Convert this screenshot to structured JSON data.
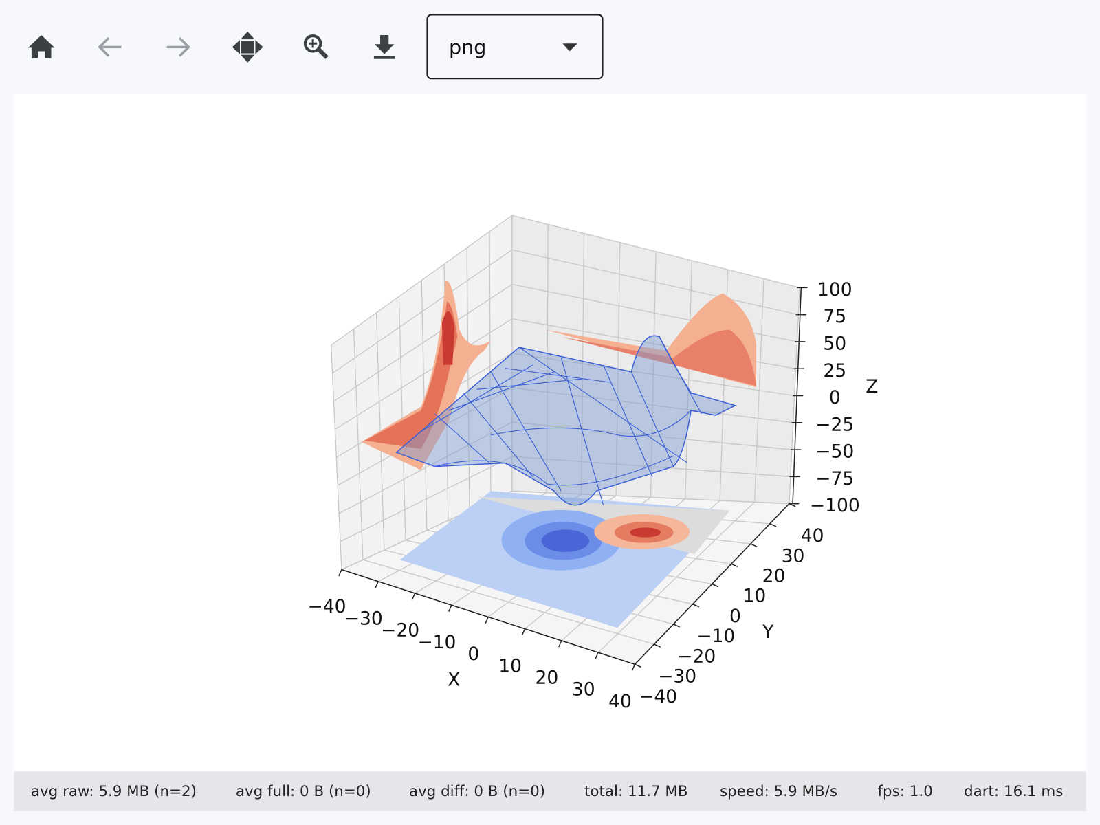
{
  "toolbar": {
    "format": "png"
  },
  "chart_data": {
    "type": "surface3d",
    "xlabel": "X",
    "ylabel": "Y",
    "zlabel": "Z",
    "xlim": [
      -40,
      40
    ],
    "xticks": [
      {
        "value": -40,
        "label": "−40"
      },
      {
        "value": -30,
        "label": "−30"
      },
      {
        "value": -20,
        "label": "−20"
      },
      {
        "value": -10,
        "label": "−10"
      },
      0,
      10,
      20,
      30,
      40
    ],
    "ylim": [
      -40,
      40
    ],
    "yticks": [
      {
        "value": -40,
        "label": "−40"
      },
      {
        "value": -30,
        "label": "−30"
      },
      {
        "value": -20,
        "label": "−20"
      },
      {
        "value": -10,
        "label": "−10"
      },
      0,
      10,
      20,
      30,
      40
    ],
    "zlim": [
      -100,
      100
    ],
    "zticks": [
      {
        "value": -100,
        "label": "−100"
      },
      {
        "value": -75,
        "label": "−75"
      },
      {
        "value": -50,
        "label": "−50"
      },
      {
        "value": -25,
        "label": "−25"
      },
      0,
      25,
      50,
      75,
      100
    ]
  },
  "status_bar": {
    "items": [
      "avg raw: 5.9 MB (n=2)",
      "avg full: 0 B (n=0)",
      "avg diff: 0 B (n=0)",
      "total: 11.7 MB",
      "speed: 5.9 MB/s",
      "fps: 1.0",
      "dart: 16.1 ms"
    ]
  }
}
